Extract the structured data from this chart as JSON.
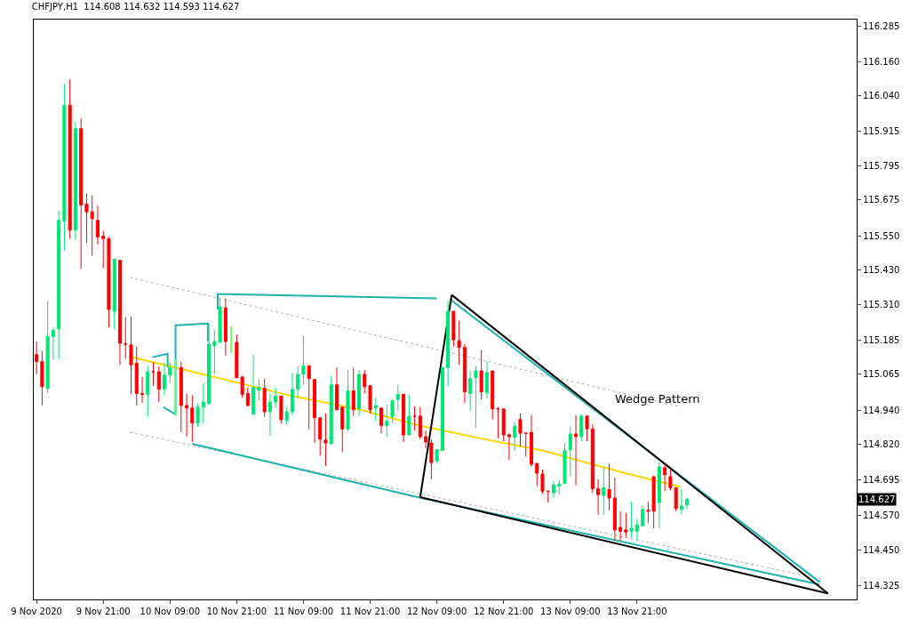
{
  "chart_data": {
    "type": "candlestick",
    "title": "CHFJPY,H1  114.608 114.632 114.593 114.627",
    "colors": [
      "#ff0000",
      "#ff0000",
      "#00e676",
      "#00e676",
      "#00e676",
      "#00e676",
      "#ff0000",
      "#00e676",
      "#ff0000",
      "#ff0000",
      "#ff0000",
      "#ff0000",
      "#ff0000",
      "#ff0000",
      "#00e676",
      "#ff0000",
      "#ff0000",
      "#ff0000",
      "#ff0000",
      "#ff0000",
      "#00e676",
      "#ff0000",
      "#ff0000",
      "#00e676",
      "#00e676",
      "#ff0000",
      "#ff0000",
      "#ff0000",
      "#00e676",
      "#00e676",
      "#00e676",
      "#00e676",
      "#00e676",
      "#ff0000",
      "#ff0000",
      "#ff0000",
      "#ff0000",
      "#00e676",
      "#00e676",
      "#ff0000",
      "#00e676",
      "#00e676",
      "#ff0000",
      "#00e676",
      "#00e676",
      "#00e676",
      "#00e676",
      "#ff0000",
      "#ff0000",
      "#ff0000",
      "#ff0000",
      "#00e676",
      "#ff0000",
      "#ff0000",
      "#00e676",
      "#ff0000",
      "#00e676",
      "#ff0000",
      "#ff0000",
      "#00e676",
      "#ff0000",
      "#00e676",
      "#00e676",
      "#00e676",
      "#ff0000",
      "#00e676",
      "#ff0000",
      "#ff0000",
      "#ff0000",
      "#ff0000",
      "#00e676",
      "#00e676",
      "#00e676",
      "#ff0000",
      "#ff0000",
      "#ff0000",
      "#00e676",
      "#00e676",
      "#ff0000",
      "#00e676",
      "#ff0000",
      "#ff0000",
      "#ff0000",
      "#ff0000",
      "#00e676",
      "#ff0000",
      "#ff0000",
      "#ff0000",
      "#ff0000",
      "#ff0000",
      "#ff0000",
      "#00e676",
      "#00e676",
      "#00e676",
      "#00e676",
      "#ff0000",
      "#00e676",
      "#ff0000",
      "#ff0000",
      "#ff0000",
      "#00e676",
      "#ff0000",
      "#ff0000",
      "#ff0000",
      "#ff0000",
      "#00e676",
      "#00e676",
      "#00e676",
      "#ff0000",
      "#ff0000",
      "#00e676",
      "#ff0000",
      "#ff0000",
      "#ff0000",
      "#00e676",
      "#00e676"
    ],
    "x": [
      "2020-11-09T09:00",
      "2020-11-09T10:00",
      "2020-11-09T11:00",
      "2020-11-09T12:00",
      "2020-11-09T13:00",
      "2020-11-09T14:00",
      "2020-11-09T15:00",
      "2020-11-09T16:00",
      "2020-11-09T17:00",
      "2020-11-09T18:00",
      "2020-11-09T19:00",
      "2020-11-09T20:00",
      "2020-11-09T21:00",
      "2020-11-09T22:00",
      "2020-11-09T23:00",
      "2020-11-10T00:00",
      "2020-11-10T01:00",
      "2020-11-10T02:00",
      "2020-11-10T03:00",
      "2020-11-10T04:00",
      "2020-11-10T05:00",
      "2020-11-10T06:00",
      "2020-11-10T07:00",
      "2020-11-10T08:00",
      "2020-11-10T09:00",
      "2020-11-10T11:00",
      "2020-11-10T12:00",
      "2020-11-10T13:00",
      "2020-11-10T14:00",
      "2020-11-10T15:00",
      "2020-11-10T16:00",
      "2020-11-10T17:00",
      "2020-11-10T18:00",
      "2020-11-10T19:00",
      "2020-11-10T21:00",
      "2020-11-10T22:00",
      "2020-11-10T23:00",
      "2020-11-11T00:00",
      "2020-11-11T01:00",
      "2020-11-11T02:00",
      "2020-11-11T03:00",
      "2020-11-11T04:00",
      "2020-11-11T05:00",
      "2020-11-11T06:00",
      "2020-11-11T07:00",
      "2020-11-11T08:00",
      "2020-11-11T09:00",
      "2020-11-11T10:00",
      "2020-11-11T11:00",
      "2020-11-11T12:00",
      "2020-11-11T13:00",
      "2020-11-11T14:00",
      "2020-11-11T15:00",
      "2020-11-11T16:00",
      "2020-11-11T17:00",
      "2020-11-11T18:00",
      "2020-11-11T19:00",
      "2020-11-11T20:00",
      "2020-11-11T21:00",
      "2020-11-11T22:00",
      "2020-11-11T23:00",
      "2020-11-12T00:00",
      "2020-11-12T01:00",
      "2020-11-12T02:00",
      "2020-11-12T03:00",
      "2020-11-12T04:00",
      "2020-11-12T05:00",
      "2020-11-12T06:00",
      "2020-11-12T07:00",
      "2020-11-12T08:00",
      "2020-11-12T09:00",
      "2020-11-12T10:00",
      "2020-11-12T11:00",
      "2020-11-12T12:00",
      "2020-11-12T13:00",
      "2020-11-12T14:00",
      "2020-11-12T15:00",
      "2020-11-12T16:00",
      "2020-11-12T17:00",
      "2020-11-12T18:00",
      "2020-11-12T19:00",
      "2020-11-12T20:00",
      "2020-11-12T21:00",
      "2020-11-12T22:00",
      "2020-11-12T23:00",
      "2020-11-13T00:00",
      "2020-11-13T01:00",
      "2020-11-13T02:00",
      "2020-11-13T03:00",
      "2020-11-13T04:00",
      "2020-11-13T05:00",
      "2020-11-13T06:00",
      "2020-11-13T07:00",
      "2020-11-13T08:00",
      "2020-11-13T09:00",
      "2020-11-13T10:00",
      "2020-11-13T11:00",
      "2020-11-13T12:00",
      "2020-11-13T13:00",
      "2020-11-13T14:00",
      "2020-11-13T15:00",
      "2020-11-13T16:00",
      "2020-11-13T17:00",
      "2020-11-13T18:00",
      "2020-11-13T19:00",
      "2020-11-13T20:00",
      "2020-11-13T21:00",
      "2020-11-13T22:00",
      "2020-11-13T23:00",
      "2020-11-14T00:00",
      "2020-11-14T01:00",
      "2020-11-14T02:00",
      "2020-11-14T03:00",
      "2020-11-14T04:00",
      "2020-11-14T05:00",
      "2020-11-14T06:00"
    ],
    "ohlc": [
      [
        115.134,
        115.18,
        115.065,
        115.11
      ],
      [
        115.11,
        115.147,
        114.956,
        115.022
      ],
      [
        115.016,
        115.322,
        115.001,
        115.198
      ],
      [
        115.198,
        115.228,
        115.116,
        115.219
      ],
      [
        115.225,
        115.637,
        115.119,
        115.604
      ],
      [
        115.601,
        116.082,
        115.498,
        116.007
      ],
      [
        116.007,
        116.098,
        115.54,
        115.57
      ],
      [
        115.57,
        115.949,
        115.537,
        115.925
      ],
      [
        115.925,
        115.961,
        115.434,
        115.658
      ],
      [
        115.661,
        115.698,
        115.525,
        115.634
      ],
      [
        115.634,
        115.692,
        115.48,
        115.61
      ],
      [
        115.604,
        115.655,
        115.519,
        115.546
      ],
      [
        115.549,
        115.567,
        115.437,
        115.54
      ],
      [
        115.54,
        115.546,
        115.228,
        115.292
      ],
      [
        115.286,
        115.468,
        115.222,
        115.468
      ],
      [
        115.464,
        115.464,
        115.098,
        115.174
      ],
      [
        115.171,
        115.265,
        115.119,
        115.171
      ],
      [
        115.168,
        115.268,
        114.995,
        115.098
      ],
      [
        115.104,
        115.162,
        114.956,
        114.998
      ],
      [
        114.998,
        115.056,
        114.965,
        114.995
      ],
      [
        114.995,
        115.095,
        114.916,
        115.074
      ],
      [
        115.074,
        115.107,
        115.025,
        115.074
      ],
      [
        115.074,
        115.092,
        114.968,
        115.013
      ],
      [
        115.013,
        115.107,
        114.992,
        115.062
      ],
      [
        115.062,
        115.107,
        115.034,
        115.089
      ],
      [
        115.089,
        115.11,
        114.862,
        114.956
      ],
      [
        114.956,
        114.998,
        114.847,
        114.947
      ],
      [
        114.947,
        114.992,
        114.828,
        114.895
      ],
      [
        114.895,
        114.962,
        114.88,
        114.95
      ],
      [
        114.95,
        115.034,
        114.892,
        114.968
      ],
      [
        114.962,
        115.243,
        114.962,
        115.171
      ],
      [
        115.165,
        115.222,
        115.065,
        115.18
      ],
      [
        115.177,
        115.331,
        115.177,
        115.301
      ],
      [
        115.298,
        115.331,
        115.131,
        115.18
      ],
      [
        115.177,
        115.204,
        115.053,
        115.053
      ],
      [
        115.056,
        115.059,
        114.983,
        114.995
      ],
      [
        114.998,
        115.019,
        114.953,
        114.956
      ],
      [
        114.925,
        115.134,
        114.925,
        115.019
      ],
      [
        115.01,
        115.047,
        114.974,
        115.019
      ],
      [
        115.016,
        115.05,
        114.916,
        114.934
      ],
      [
        114.934,
        114.998,
        114.85,
        114.968
      ],
      [
        114.968,
        115.019,
        114.947,
        114.989
      ],
      [
        114.989,
        114.989,
        114.892,
        114.907
      ],
      [
        114.904,
        114.95,
        114.889,
        114.934
      ],
      [
        114.934,
        115.071,
        114.922,
        115.013
      ],
      [
        115.013,
        115.092,
        114.98,
        115.065
      ],
      [
        115.065,
        115.201,
        115.028,
        115.095
      ],
      [
        115.095,
        115.095,
        114.874,
        115.05
      ],
      [
        115.047,
        115.047,
        114.825,
        114.913
      ],
      [
        114.913,
        114.913,
        114.78,
        114.838
      ],
      [
        114.835,
        114.928,
        114.744,
        114.825
      ],
      [
        114.822,
        115.059,
        114.822,
        115.028
      ],
      [
        115.028,
        115.089,
        114.941,
        114.941
      ],
      [
        114.95,
        114.953,
        114.792,
        114.874
      ],
      [
        114.874,
        115.08,
        114.865,
        115.007
      ],
      [
        115.007,
        115.089,
        114.919,
        114.941
      ],
      [
        114.944,
        115.08,
        114.919,
        115.065
      ],
      [
        115.065,
        115.08,
        114.998,
        115.022
      ],
      [
        115.025,
        115.028,
        114.928,
        114.941
      ],
      [
        114.947,
        114.983,
        114.901,
        114.956
      ],
      [
        114.947,
        114.947,
        114.859,
        114.886
      ],
      [
        114.886,
        114.959,
        114.847,
        114.901
      ],
      [
        114.916,
        114.974,
        114.895,
        114.974
      ],
      [
        114.977,
        115.028,
        114.937,
        114.995
      ],
      [
        114.995,
        114.995,
        114.828,
        114.853
      ],
      [
        114.853,
        114.992,
        114.853,
        114.919
      ],
      [
        114.919,
        114.953,
        114.868,
        114.919
      ],
      [
        114.919,
        114.95,
        114.838,
        114.847
      ],
      [
        114.847,
        114.868,
        114.807,
        114.828
      ],
      [
        114.825,
        114.838,
        114.698,
        114.756
      ],
      [
        114.762,
        114.801,
        114.753,
        114.801
      ],
      [
        114.798,
        115.089,
        114.798,
        115.089
      ],
      [
        115.089,
        115.322,
        115.022,
        115.286
      ],
      [
        115.286,
        115.286,
        115.162,
        115.186
      ],
      [
        115.183,
        115.253,
        115.098,
        115.159
      ],
      [
        115.159,
        115.171,
        114.965,
        115.004
      ],
      [
        114.998,
        115.08,
        114.937,
        115.05
      ],
      [
        115.053,
        115.095,
        114.877,
        115.077
      ],
      [
        115.077,
        115.15,
        114.977,
        115.004
      ],
      [
        115.001,
        115.11,
        114.98,
        115.071
      ],
      [
        115.077,
        115.077,
        114.907,
        114.944
      ],
      [
        114.944,
        114.95,
        114.841,
        114.944
      ],
      [
        114.944,
        114.944,
        114.831,
        114.853
      ],
      [
        114.853,
        114.859,
        114.765,
        114.847
      ],
      [
        114.844,
        114.898,
        114.798,
        114.883
      ],
      [
        114.907,
        114.928,
        114.813,
        114.859
      ],
      [
        114.859,
        114.859,
        114.777,
        114.859
      ],
      [
        114.862,
        114.922,
        114.741,
        114.75
      ],
      [
        114.753,
        114.753,
        114.674,
        114.719
      ],
      [
        114.716,
        114.732,
        114.647,
        114.656
      ],
      [
        114.656,
        114.656,
        114.616,
        114.656
      ],
      [
        114.65,
        114.692,
        114.632,
        114.677
      ],
      [
        114.674,
        114.695,
        114.644,
        114.68
      ],
      [
        114.683,
        114.825,
        114.683,
        114.798
      ],
      [
        114.801,
        114.883,
        114.707,
        114.856
      ],
      [
        114.856,
        114.922,
        114.677,
        114.847
      ],
      [
        114.847,
        114.925,
        114.831,
        114.919
      ],
      [
        114.919,
        114.922,
        114.831,
        114.874
      ],
      [
        114.874,
        114.889,
        114.65,
        114.665
      ],
      [
        114.665,
        114.698,
        114.574,
        114.644
      ],
      [
        114.641,
        114.738,
        114.574,
        114.668
      ],
      [
        114.662,
        114.753,
        114.589,
        114.632
      ],
      [
        114.632,
        114.704,
        114.483,
        114.52
      ],
      [
        114.529,
        114.586,
        114.483,
        114.516
      ],
      [
        114.52,
        114.58,
        114.495,
        114.513
      ],
      [
        114.516,
        114.619,
        114.495,
        114.526
      ],
      [
        114.516,
        114.559,
        114.483,
        114.538
      ],
      [
        114.535,
        114.607,
        114.535,
        114.592
      ],
      [
        114.589,
        114.619,
        114.544,
        114.586
      ],
      [
        114.707,
        114.707,
        114.526,
        114.586
      ],
      [
        114.616,
        114.756,
        114.526,
        114.741
      ],
      [
        114.738,
        114.753,
        114.656,
        114.713
      ],
      [
        114.707,
        114.732,
        114.659,
        114.668
      ],
      [
        114.668,
        114.668,
        114.586,
        114.595
      ],
      [
        114.592,
        114.662,
        114.574,
        114.604
      ],
      [
        114.608,
        114.632,
        114.593,
        114.627
      ]
    ],
    "series": [
      {
        "type": "line",
        "color": "#ffd700",
        "line_style": "solid",
        "x": [
          "2020-11-10T01:40",
          "2020-11-10T15:00",
          "2020-11-11T06:20",
          "2020-11-11T19:20",
          "2020-11-12T05:10",
          "2020-11-12T16:00",
          "2020-11-13T04:10",
          "2020-11-13T11:50",
          "2020-11-13T19:30",
          "2020-11-14T04:50"
        ],
        "values": [
          115.128,
          115.065,
          114.992,
          114.941,
          114.889,
          114.844,
          114.798,
          114.756,
          114.716,
          114.671
        ]
      },
      {
        "type": "line",
        "color": "#b0b0b0",
        "line_style": "dotted",
        "x": [
          "2020-11-10T01:50",
          "2020-11-14T04:30"
        ],
        "values": [
          115.404,
          114.953
        ]
      },
      {
        "type": "line",
        "color": "#b0b0b0",
        "line_style": "dotted",
        "x": [
          "2020-11-10T01:50",
          "2020-11-15T06:30"
        ],
        "values": [
          114.862,
          114.347
        ]
      },
      {
        "type": "line",
        "color": "#20b2aa",
        "line_style": "solid",
        "x": [
          "2020-11-10T05:50",
          "2020-11-10T08:35",
          "2020-11-10T08:35"
        ],
        "values": [
          115.125,
          115.137,
          115.089
        ]
      },
      {
        "type": "line",
        "color": "#20b2aa",
        "line_style": "solid",
        "x": [
          "2020-11-10T07:50",
          "2020-11-10T10:00",
          "2020-11-10T10:00",
          "2020-11-10T15:50",
          "2020-11-10T15:50"
        ],
        "values": [
          114.95,
          114.925,
          115.237,
          115.243,
          115.18
        ]
      },
      {
        "type": "line",
        "color": "#20b2aa",
        "line_style": "solid",
        "x": [
          "2020-11-10T17:35",
          "2020-11-10T17:35",
          "2020-11-12T09:00"
        ],
        "values": [
          115.292,
          115.346,
          115.331
        ]
      },
      {
        "type": "line",
        "color": "#20b2aa",
        "line_style": "solid",
        "x": [
          "2020-11-10T13:00",
          "2020-11-12T05:30",
          "2020-11-15T05:50"
        ],
        "values": [
          114.822,
          114.635,
          114.329
        ]
      },
      {
        "type": "line",
        "color": "#20b2aa",
        "line_style": "solid",
        "x": [
          "2020-11-12T11:20",
          "2020-11-15T05:50"
        ],
        "values": [
          115.328,
          114.338
        ]
      },
      {
        "type": "line",
        "color": "#66ff66",
        "line_style": "solid",
        "x": [
          "2020-11-10T10:00",
          "2020-11-10T10:00"
        ],
        "values": [
          115.119,
          114.919
        ]
      },
      {
        "type": "line",
        "color": "#66ff66",
        "line_style": "solid",
        "x": [
          "2020-11-10T20:00",
          "2020-11-10T20:00"
        ],
        "values": [
          115.234,
          115.14
        ]
      },
      {
        "type": "line",
        "color": "#000000",
        "line_style": "solid",
        "x": [
          "2020-11-12T06:00",
          "2020-11-12T11:40"
        ],
        "values": [
          114.635,
          115.343
        ]
      },
      {
        "type": "line",
        "color": "#000000",
        "line_style": "solid",
        "x": [
          "2020-11-12T11:40",
          "2020-11-15T07:20"
        ],
        "values": [
          115.343,
          114.298
        ]
      },
      {
        "type": "line",
        "color": "#000000",
        "line_style": "solid",
        "x": [
          "2020-11-12T06:00",
          "2020-11-15T07:20"
        ],
        "values": [
          114.635,
          114.298
        ]
      }
    ],
    "annotations": [
      {
        "text": "Wedge Pattern",
        "x": "2020-11-14T00:45",
        "y": 114.98
      },
      {
        "text": "114.627",
        "y": 114.627
      }
    ],
    "xlim": [
      "2020-11-09T08:30",
      "2020-11-15T12:30"
    ],
    "xticks": [
      {
        "value": "2020-11-09T09:00",
        "label": "9 Nov 2020"
      },
      {
        "value": "2020-11-09T21:00",
        "label": "9 Nov 21:00"
      },
      {
        "value": "2020-11-10T09:00",
        "label": "10 Nov 09:00"
      },
      {
        "value": "2020-11-10T21:00",
        "label": "10 Nov 21:00"
      },
      {
        "value": "2020-11-11T09:00",
        "label": "11 Nov 09:00"
      },
      {
        "value": "2020-11-11T21:00",
        "label": "11 Nov 21:00"
      },
      {
        "value": "2020-11-12T09:00",
        "label": "12 Nov 09:00"
      },
      {
        "value": "2020-11-12T21:00",
        "label": "12 Nov 21:00"
      },
      {
        "value": "2020-11-13T09:00",
        "label": "13 Nov 09:00"
      },
      {
        "value": "2020-11-13T21:00",
        "label": "13 Nov 21:00"
      }
    ],
    "ylim": [
      114.277,
      116.307
    ],
    "yticks": [
      116.285,
      {
        "value": 116.16,
        "label": "116.160"
      },
      {
        "value": 116.04,
        "label": "116.040"
      },
      115.915,
      115.795,
      115.675,
      {
        "value": 115.55,
        "label": "115.550"
      },
      {
        "value": 115.43,
        "label": "115.430"
      },
      {
        "value": 115.31,
        "label": "115.310"
      },
      115.185,
      115.065,
      {
        "value": 114.94,
        "label": "114.940"
      },
      {
        "value": 114.82,
        "label": "114.820"
      },
      114.695,
      {
        "value": 114.57,
        "label": "114.570"
      },
      {
        "value": 114.45,
        "label": "114.450"
      },
      114.325
    ]
  }
}
